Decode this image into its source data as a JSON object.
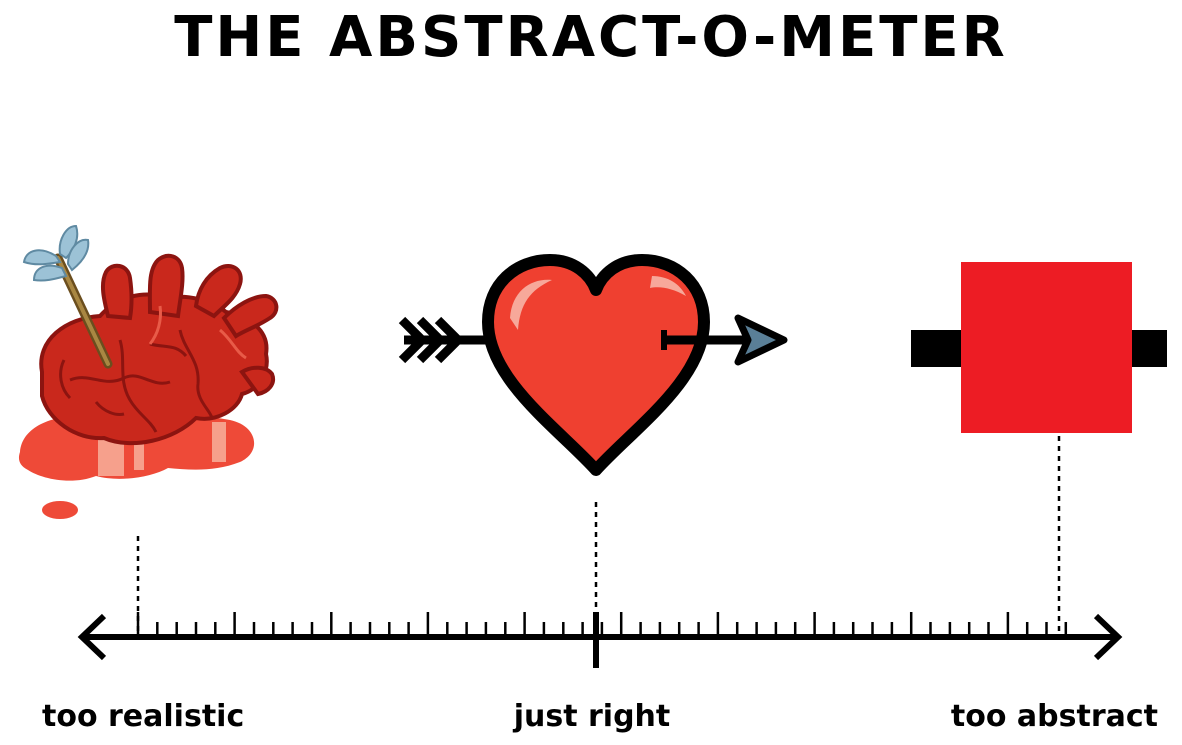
{
  "title": "THE ABSTRACT-O-METER",
  "scale": {
    "left_label": "too realistic",
    "middle_label": "just right",
    "right_label": "too abstract"
  },
  "icons": {
    "realistic": "anatomical-heart-with-arrow-icon",
    "stylized": "cartoon-heart-with-arrow-icon",
    "abstract": "red-square-with-bars-icon"
  },
  "colors": {
    "heart_red": "#ef4030",
    "flesh_dark": "#8c1410",
    "flesh": "#c9281c",
    "blood": "#ee4a38",
    "blood_light": "#f6a08c",
    "abstract_red": "#ed1c24",
    "feather": "#9cc2d6",
    "arrow_shaft": "#8b6a2e",
    "arrow_head": "#5a7f97",
    "ink": "#000000"
  }
}
